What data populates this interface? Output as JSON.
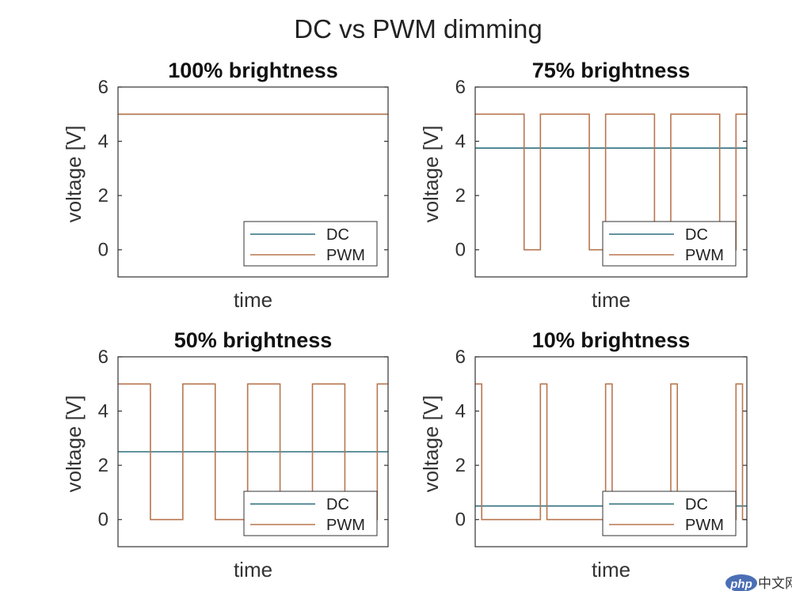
{
  "figure": {
    "title": "DC vs PWM dimming"
  },
  "colors": {
    "dc": "#2f6f7f",
    "pwm": "#b8764f",
    "axes": "#333333",
    "background": "#ffffff"
  },
  "watermark": {
    "logo_text": "php",
    "text": "中文网"
  },
  "chart_data": [
    {
      "type": "line",
      "title": "100% brightness",
      "xlabel": "time",
      "ylabel": "voltage [V]",
      "ylim": [
        -1,
        6
      ],
      "yticks": [
        0,
        2,
        4,
        6
      ],
      "xlim": [
        0,
        1
      ],
      "grid": false,
      "legend": {
        "position": "bottom-right",
        "entries": [
          "DC",
          "PWM"
        ]
      },
      "series": [
        {
          "name": "DC",
          "kind": "dc",
          "level": 5
        },
        {
          "name": "PWM",
          "kind": "pwm",
          "period": 0.24,
          "duty": 1.0,
          "high": 5,
          "low": 0
        }
      ]
    },
    {
      "type": "line",
      "title": "75% brightness",
      "xlabel": "time",
      "ylabel": "voltage [V]",
      "ylim": [
        -1,
        6
      ],
      "yticks": [
        0,
        2,
        4,
        6
      ],
      "xlim": [
        0,
        1
      ],
      "grid": false,
      "legend": {
        "position": "bottom-right",
        "entries": [
          "DC",
          "PWM"
        ]
      },
      "series": [
        {
          "name": "DC",
          "kind": "dc",
          "level": 3.75
        },
        {
          "name": "PWM",
          "kind": "pwm",
          "period": 0.24,
          "duty": 0.75,
          "high": 5,
          "low": 0
        }
      ]
    },
    {
      "type": "line",
      "title": "50% brightness",
      "xlabel": "time",
      "ylabel": "voltage [V]",
      "ylim": [
        -1,
        6
      ],
      "yticks": [
        0,
        2,
        4,
        6
      ],
      "xlim": [
        0,
        1
      ],
      "grid": false,
      "legend": {
        "position": "bottom-right",
        "entries": [
          "DC",
          "PWM"
        ]
      },
      "series": [
        {
          "name": "DC",
          "kind": "dc",
          "level": 2.5
        },
        {
          "name": "PWM",
          "kind": "pwm",
          "period": 0.24,
          "duty": 0.5,
          "high": 5,
          "low": 0
        }
      ]
    },
    {
      "type": "line",
      "title": "10% brightness",
      "xlabel": "time",
      "ylabel": "voltage [V]",
      "ylim": [
        -1,
        6
      ],
      "yticks": [
        0,
        2,
        4,
        6
      ],
      "xlim": [
        0,
        1
      ],
      "grid": false,
      "legend": {
        "position": "bottom-right",
        "entries": [
          "DC",
          "PWM"
        ]
      },
      "series": [
        {
          "name": "DC",
          "kind": "dc",
          "level": 0.5
        },
        {
          "name": "PWM",
          "kind": "pwm",
          "period": 0.24,
          "duty": 0.1,
          "high": 5,
          "low": 0
        }
      ]
    }
  ]
}
